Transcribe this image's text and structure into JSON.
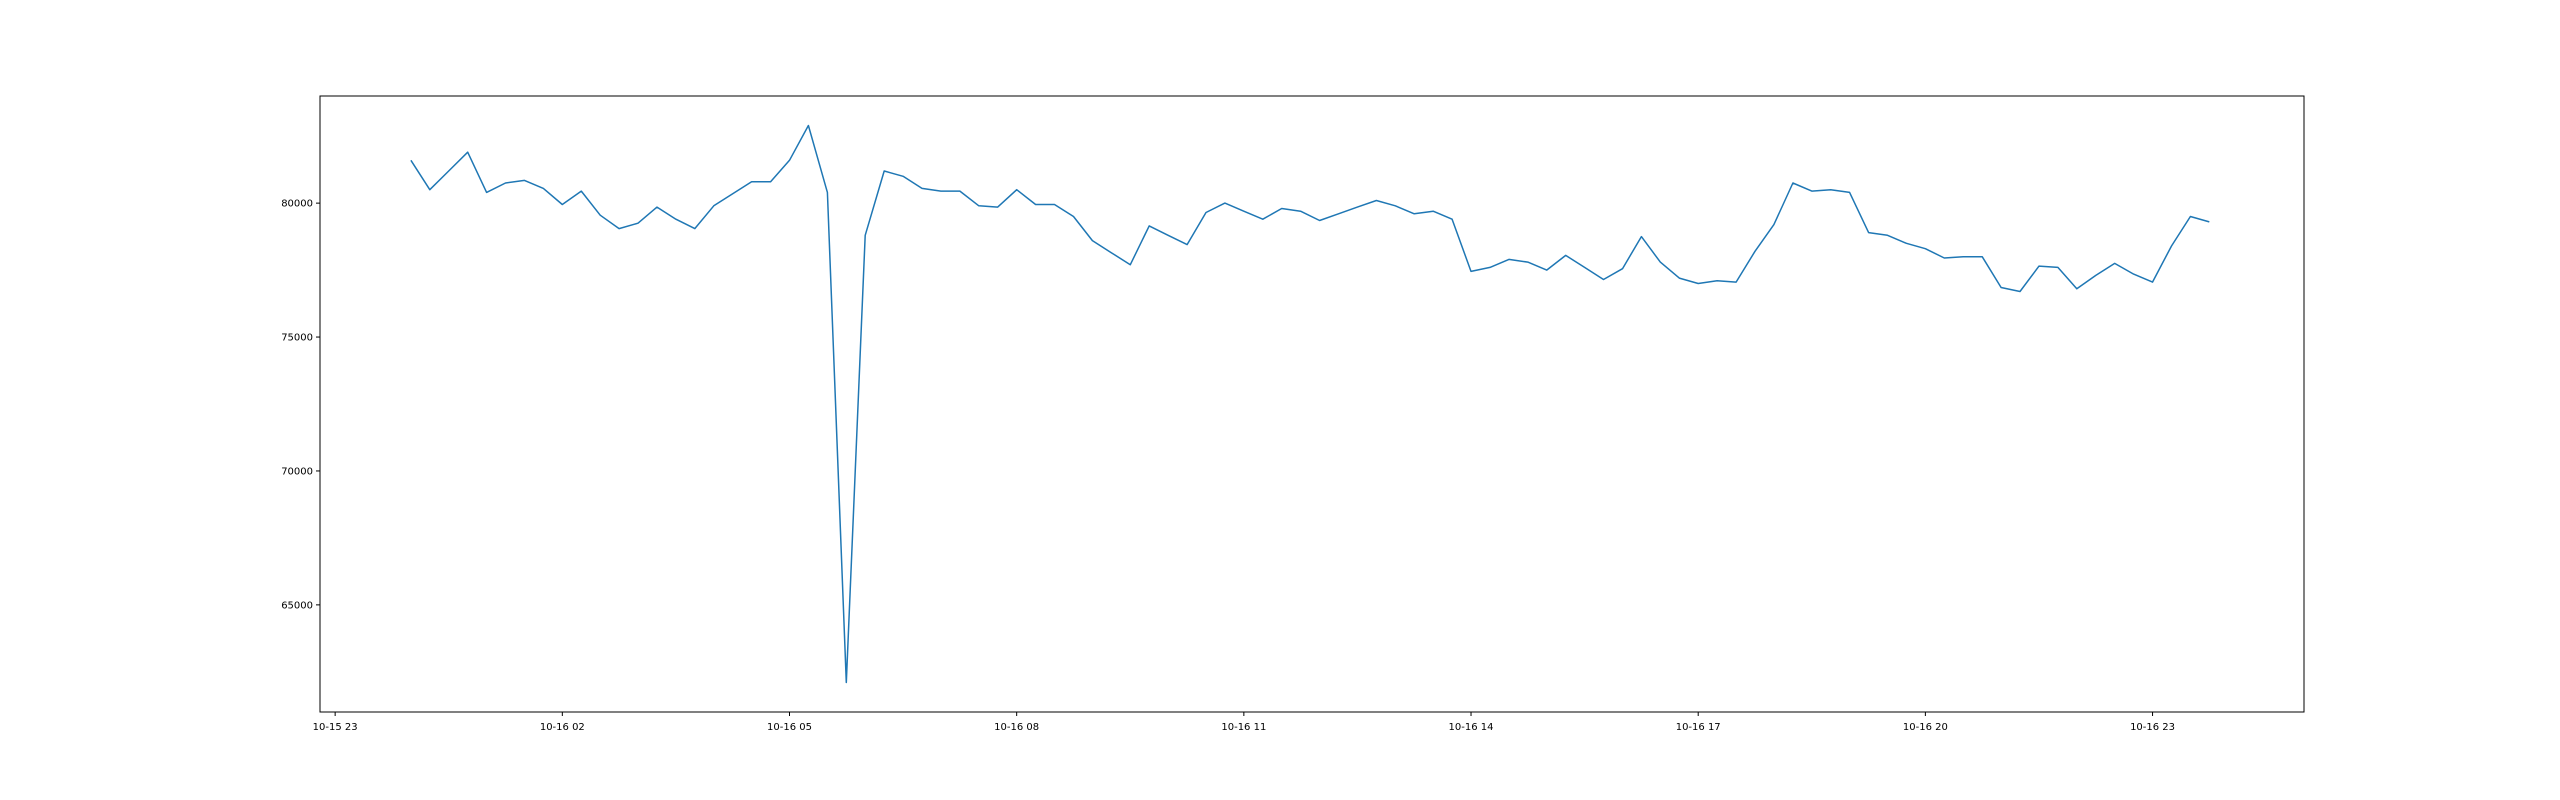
{
  "chart_data": {
    "type": "line",
    "title": "",
    "xlabel": "",
    "ylabel": "",
    "grid": false,
    "colors": {
      "line": "#1f77b4",
      "axes": "#000000",
      "background": "#ffffff"
    },
    "x_ticks": [
      "10-15 23",
      "10-16 02",
      "10-16 05",
      "10-16 08",
      "10-16 11",
      "10-16 14",
      "10-16 17",
      "10-16 20",
      "10-16 23"
    ],
    "y_ticks": [
      65000,
      70000,
      75000,
      80000
    ],
    "xlim": [
      "2023-10-15 22:48",
      "2023-10-17 01:00"
    ],
    "ylim": [
      61000,
      84000
    ],
    "series": [
      {
        "x": [
          "2023-10-16 00:00",
          "2023-10-16 00:15",
          "2023-10-16 00:30",
          "2023-10-16 00:45",
          "2023-10-16 01:00",
          "2023-10-16 01:15",
          "2023-10-16 01:30",
          "2023-10-16 01:45",
          "2023-10-16 02:00",
          "2023-10-16 02:15",
          "2023-10-16 02:30",
          "2023-10-16 02:45",
          "2023-10-16 03:00",
          "2023-10-16 03:15",
          "2023-10-16 03:30",
          "2023-10-16 03:45",
          "2023-10-16 04:00",
          "2023-10-16 04:15",
          "2023-10-16 04:30",
          "2023-10-16 04:45",
          "2023-10-16 05:00",
          "2023-10-16 05:15",
          "2023-10-16 05:30",
          "2023-10-16 05:45",
          "2023-10-16 06:00",
          "2023-10-16 06:15",
          "2023-10-16 06:30",
          "2023-10-16 06:45",
          "2023-10-16 07:00",
          "2023-10-16 07:15",
          "2023-10-16 07:30",
          "2023-10-16 07:45",
          "2023-10-16 08:00",
          "2023-10-16 08:15",
          "2023-10-16 08:30",
          "2023-10-16 08:45",
          "2023-10-16 09:00",
          "2023-10-16 09:15",
          "2023-10-16 09:30",
          "2023-10-16 09:45",
          "2023-10-16 10:00",
          "2023-10-16 10:15",
          "2023-10-16 10:30",
          "2023-10-16 10:45",
          "2023-10-16 11:00",
          "2023-10-16 11:15",
          "2023-10-16 11:30",
          "2023-10-16 11:45",
          "2023-10-16 12:00",
          "2023-10-16 12:15",
          "2023-10-16 12:30",
          "2023-10-16 12:45",
          "2023-10-16 13:00",
          "2023-10-16 13:15",
          "2023-10-16 13:30",
          "2023-10-16 13:45",
          "2023-10-16 14:00",
          "2023-10-16 14:15",
          "2023-10-16 14:30",
          "2023-10-16 14:45",
          "2023-10-16 15:00",
          "2023-10-16 15:15",
          "2023-10-16 15:30",
          "2023-10-16 15:45",
          "2023-10-16 16:00",
          "2023-10-16 16:15",
          "2023-10-16 16:30",
          "2023-10-16 16:45",
          "2023-10-16 17:00",
          "2023-10-16 17:15",
          "2023-10-16 17:30",
          "2023-10-16 17:45",
          "2023-10-16 18:00",
          "2023-10-16 18:15",
          "2023-10-16 18:30",
          "2023-10-16 18:45",
          "2023-10-16 19:00",
          "2023-10-16 19:15",
          "2023-10-16 19:30",
          "2023-10-16 19:45",
          "2023-10-16 20:00",
          "2023-10-16 20:15",
          "2023-10-16 20:30",
          "2023-10-16 20:45",
          "2023-10-16 21:00",
          "2023-10-16 21:15",
          "2023-10-16 21:30",
          "2023-10-16 21:45",
          "2023-10-16 22:00",
          "2023-10-16 22:15",
          "2023-10-16 22:30",
          "2023-10-16 22:45",
          "2023-10-16 23:00",
          "2023-10-16 23:15",
          "2023-10-16 23:30",
          "2023-10-16 23:45"
        ],
        "y": [
          81600,
          80500,
          81200,
          81900,
          80400,
          80750,
          80850,
          80550,
          79950,
          80450,
          79550,
          79050,
          79250,
          79850,
          79400,
          79050,
          79900,
          80350,
          80800,
          80800,
          81600,
          82900,
          80400,
          62100,
          78800,
          81200,
          81000,
          80550,
          80450,
          80450,
          79900,
          79850,
          80500,
          79950,
          79950,
          79500,
          78600,
          78150,
          77700,
          79150,
          78800,
          78450,
          79650,
          80000,
          79700,
          79400,
          79800,
          79700,
          79350,
          79600,
          79850,
          80100,
          79900,
          79600,
          79700,
          79400,
          77450,
          77600,
          77900,
          77800,
          77500,
          78050,
          77600,
          77150,
          77550,
          78750,
          77800,
          77200,
          77000,
          77100,
          77050,
          78200,
          79200,
          80750,
          80450,
          80500,
          80400,
          78900,
          78800,
          78500,
          78300,
          77950,
          78000,
          78000,
          76850,
          76700,
          77650,
          77600,
          76800,
          77300,
          77750,
          77350,
          77050,
          78400,
          79500,
          79300
        ]
      }
    ]
  }
}
